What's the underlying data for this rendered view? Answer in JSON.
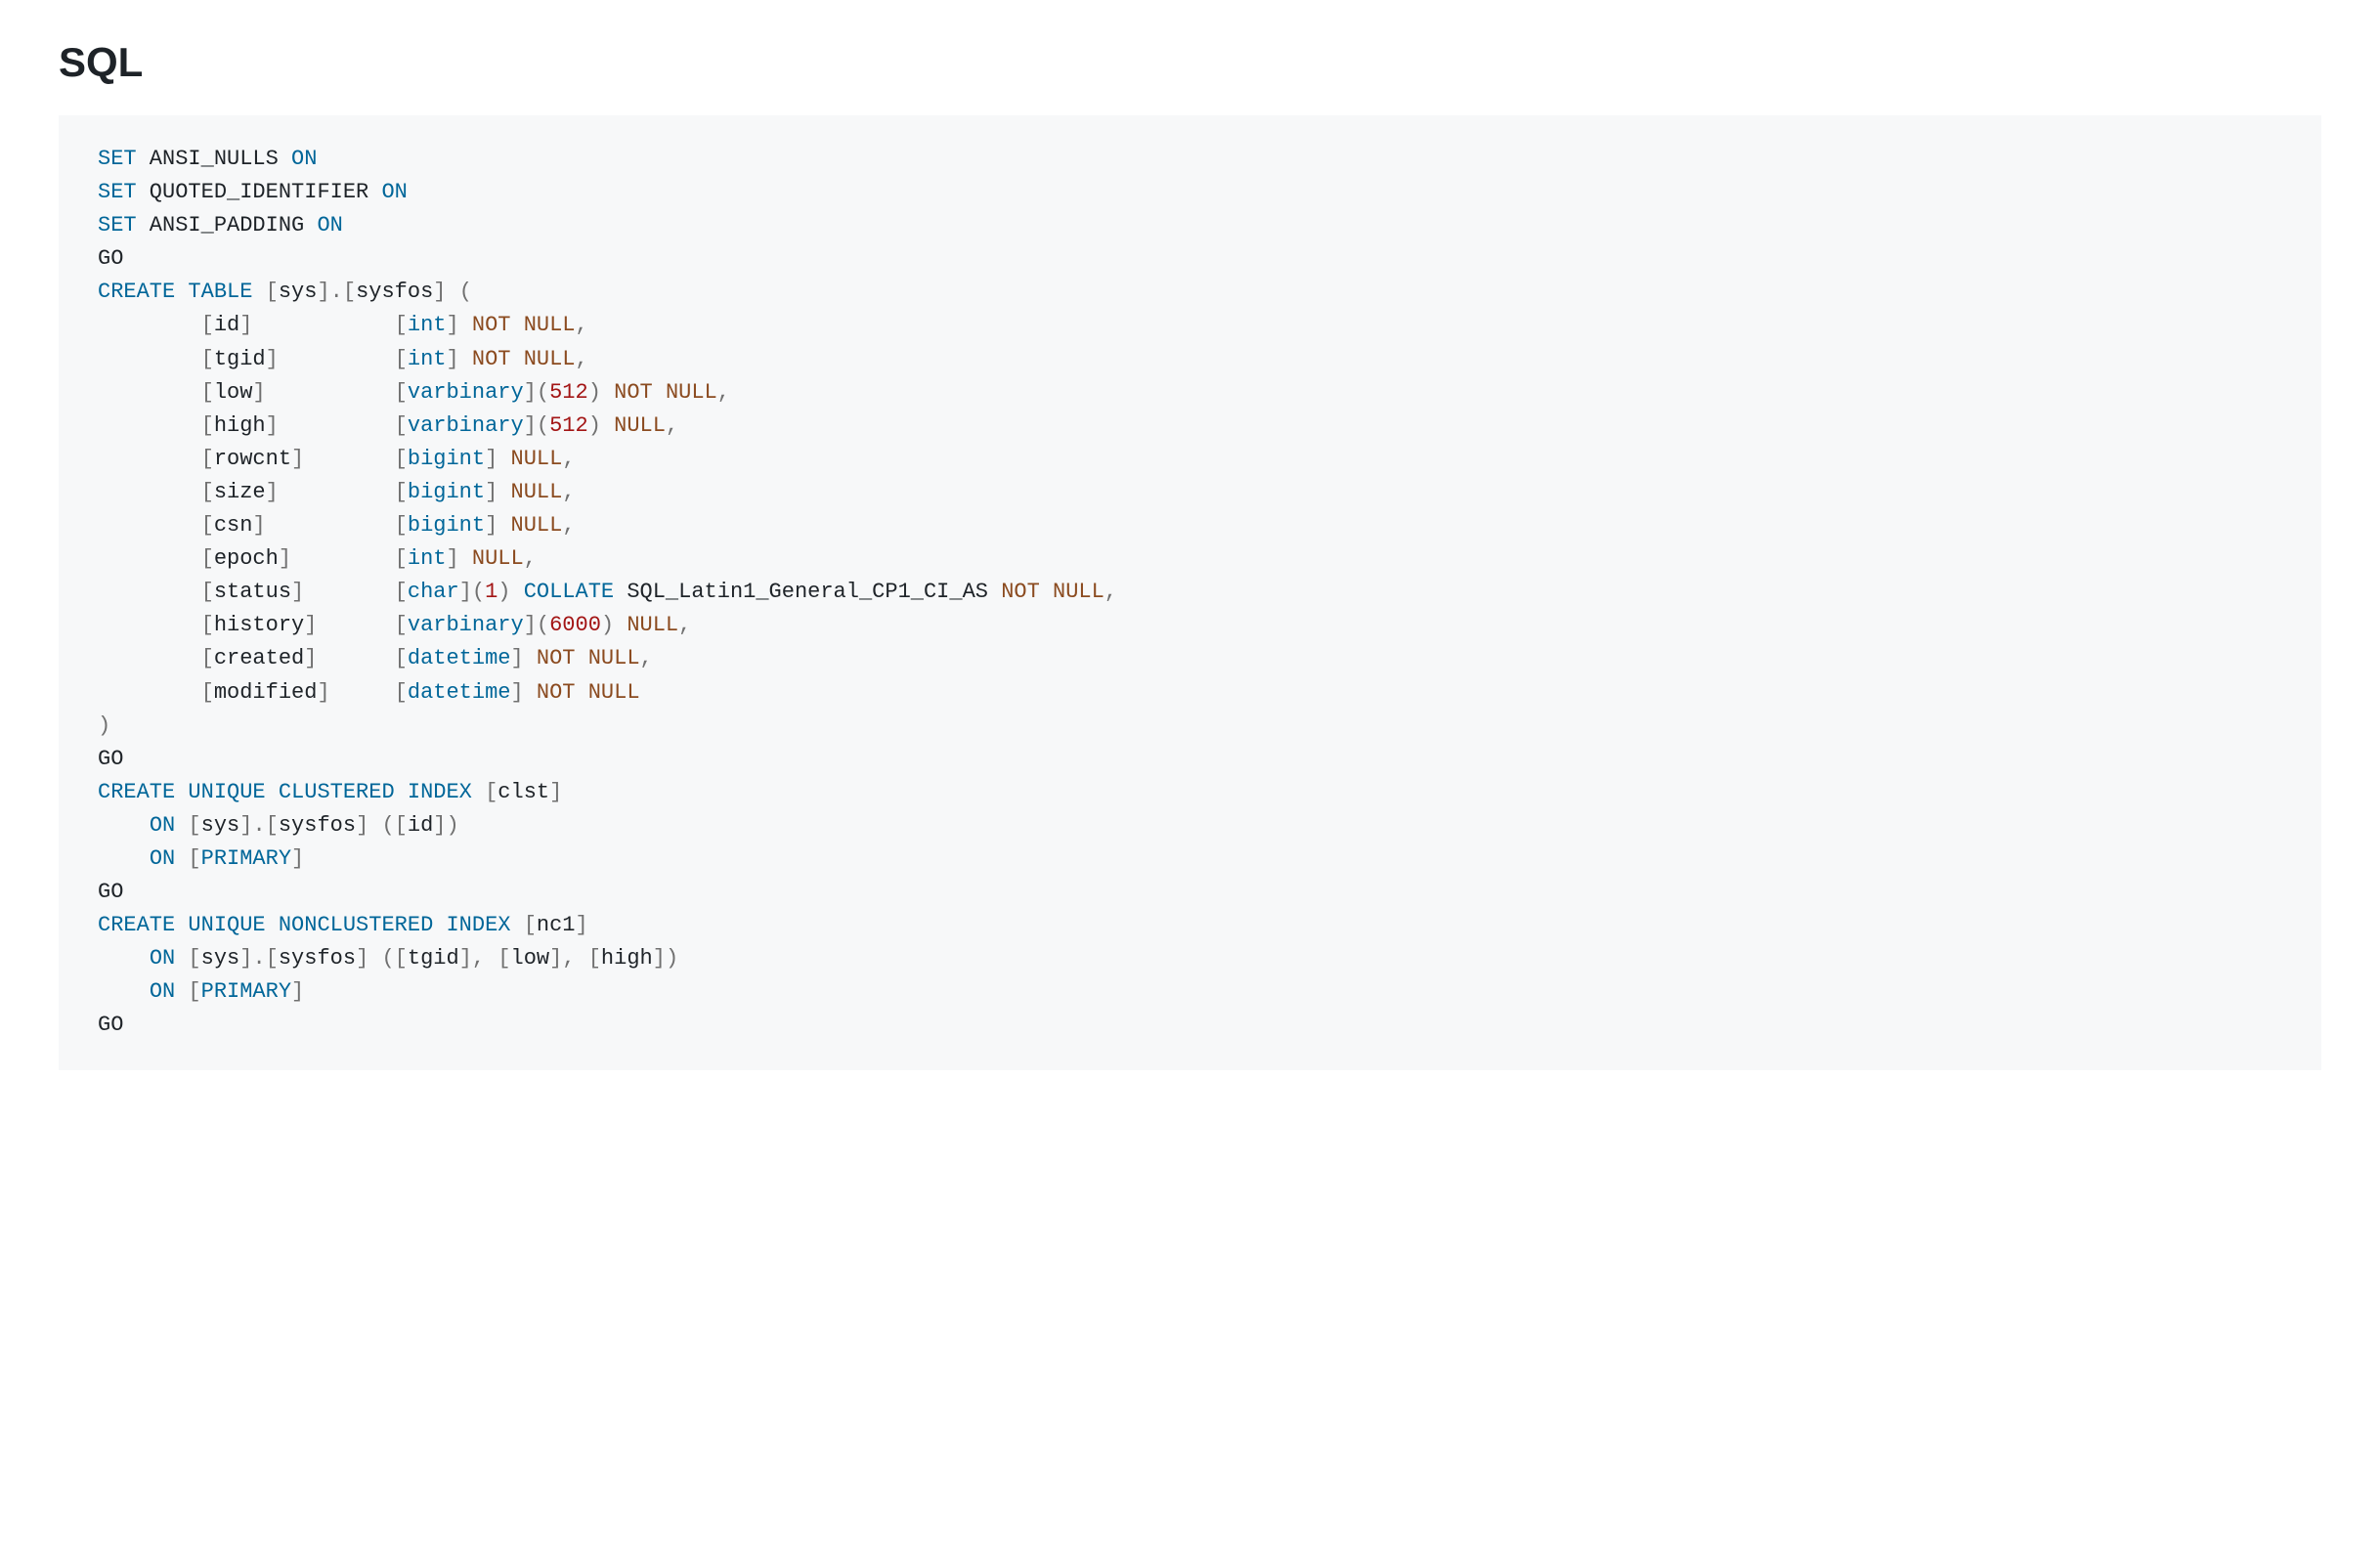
{
  "title": "SQL",
  "colors": {
    "keyword": "#006699",
    "type": "#006699",
    "number": "#a31515",
    "notnull": "#8b4b20",
    "null": "#8b4b20",
    "bracket": "#707070",
    "identifier": "#1e2328",
    "punctuation": "#707070",
    "background": "#f7f8f9",
    "page_bg": "#ffffff",
    "heading": "#1e2328"
  },
  "typography": {
    "heading_fontsize": 42,
    "heading_weight": 700,
    "code_fontsize": 22,
    "code_lineheight": 1.55,
    "code_fontfamily": "monospace"
  },
  "code": {
    "type": "sql-ddl",
    "lines": [
      [
        {
          "t": "SET",
          "c": "kw"
        },
        {
          "t": " ANSI_NULLS ",
          "c": "ident"
        },
        {
          "t": "ON",
          "c": "kw"
        }
      ],
      [
        {
          "t": "SET",
          "c": "kw"
        },
        {
          "t": " QUOTED_IDENTIFIER ",
          "c": "ident"
        },
        {
          "t": "ON",
          "c": "kw"
        }
      ],
      [
        {
          "t": "SET",
          "c": "kw"
        },
        {
          "t": " ANSI_PADDING ",
          "c": "ident"
        },
        {
          "t": "ON",
          "c": "kw"
        }
      ],
      [
        {
          "t": "GO",
          "c": "ident"
        }
      ],
      [
        {
          "t": "CREATE",
          "c": "kw"
        },
        {
          "t": " ",
          "c": "ident"
        },
        {
          "t": "TABLE",
          "c": "kw"
        },
        {
          "t": " ",
          "c": "ident"
        },
        {
          "t": "[",
          "c": "br"
        },
        {
          "t": "sys",
          "c": "ident"
        },
        {
          "t": "]",
          "c": "br"
        },
        {
          "t": ".",
          "c": "pn"
        },
        {
          "t": "[",
          "c": "br"
        },
        {
          "t": "sysfos",
          "c": "ident"
        },
        {
          "t": "]",
          "c": "br"
        },
        {
          "t": " ",
          "c": "ident"
        },
        {
          "t": "(",
          "c": "pn"
        }
      ],
      [
        {
          "t": "        ",
          "c": "ident"
        },
        {
          "t": "[",
          "c": "br"
        },
        {
          "t": "id",
          "c": "ident"
        },
        {
          "t": "]",
          "c": "br"
        },
        {
          "t": "           ",
          "c": "ident"
        },
        {
          "t": "[",
          "c": "br"
        },
        {
          "t": "int",
          "c": "typ"
        },
        {
          "t": "]",
          "c": "br"
        },
        {
          "t": " ",
          "c": "ident"
        },
        {
          "t": "NOT",
          "c": "nn"
        },
        {
          "t": " ",
          "c": "ident"
        },
        {
          "t": "NULL",
          "c": "nn"
        },
        {
          "t": ",",
          "c": "pn"
        }
      ],
      [
        {
          "t": "        ",
          "c": "ident"
        },
        {
          "t": "[",
          "c": "br"
        },
        {
          "t": "tgid",
          "c": "ident"
        },
        {
          "t": "]",
          "c": "br"
        },
        {
          "t": "         ",
          "c": "ident"
        },
        {
          "t": "[",
          "c": "br"
        },
        {
          "t": "int",
          "c": "typ"
        },
        {
          "t": "]",
          "c": "br"
        },
        {
          "t": " ",
          "c": "ident"
        },
        {
          "t": "NOT",
          "c": "nn"
        },
        {
          "t": " ",
          "c": "ident"
        },
        {
          "t": "NULL",
          "c": "nn"
        },
        {
          "t": ",",
          "c": "pn"
        }
      ],
      [
        {
          "t": "        ",
          "c": "ident"
        },
        {
          "t": "[",
          "c": "br"
        },
        {
          "t": "low",
          "c": "ident"
        },
        {
          "t": "]",
          "c": "br"
        },
        {
          "t": "          ",
          "c": "ident"
        },
        {
          "t": "[",
          "c": "br"
        },
        {
          "t": "varbinary",
          "c": "typ"
        },
        {
          "t": "]",
          "c": "br"
        },
        {
          "t": "(",
          "c": "pn"
        },
        {
          "t": "512",
          "c": "num"
        },
        {
          "t": ")",
          "c": "pn"
        },
        {
          "t": " ",
          "c": "ident"
        },
        {
          "t": "NOT",
          "c": "nn"
        },
        {
          "t": " ",
          "c": "ident"
        },
        {
          "t": "NULL",
          "c": "nn"
        },
        {
          "t": ",",
          "c": "pn"
        }
      ],
      [
        {
          "t": "        ",
          "c": "ident"
        },
        {
          "t": "[",
          "c": "br"
        },
        {
          "t": "high",
          "c": "ident"
        },
        {
          "t": "]",
          "c": "br"
        },
        {
          "t": "         ",
          "c": "ident"
        },
        {
          "t": "[",
          "c": "br"
        },
        {
          "t": "varbinary",
          "c": "typ"
        },
        {
          "t": "]",
          "c": "br"
        },
        {
          "t": "(",
          "c": "pn"
        },
        {
          "t": "512",
          "c": "num"
        },
        {
          "t": ")",
          "c": "pn"
        },
        {
          "t": " ",
          "c": "ident"
        },
        {
          "t": "NULL",
          "c": "nl"
        },
        {
          "t": ",",
          "c": "pn"
        }
      ],
      [
        {
          "t": "        ",
          "c": "ident"
        },
        {
          "t": "[",
          "c": "br"
        },
        {
          "t": "rowcnt",
          "c": "ident"
        },
        {
          "t": "]",
          "c": "br"
        },
        {
          "t": "       ",
          "c": "ident"
        },
        {
          "t": "[",
          "c": "br"
        },
        {
          "t": "bigint",
          "c": "typ"
        },
        {
          "t": "]",
          "c": "br"
        },
        {
          "t": " ",
          "c": "ident"
        },
        {
          "t": "NULL",
          "c": "nl"
        },
        {
          "t": ",",
          "c": "pn"
        }
      ],
      [
        {
          "t": "        ",
          "c": "ident"
        },
        {
          "t": "[",
          "c": "br"
        },
        {
          "t": "size",
          "c": "ident"
        },
        {
          "t": "]",
          "c": "br"
        },
        {
          "t": "         ",
          "c": "ident"
        },
        {
          "t": "[",
          "c": "br"
        },
        {
          "t": "bigint",
          "c": "typ"
        },
        {
          "t": "]",
          "c": "br"
        },
        {
          "t": " ",
          "c": "ident"
        },
        {
          "t": "NULL",
          "c": "nl"
        },
        {
          "t": ",",
          "c": "pn"
        }
      ],
      [
        {
          "t": "        ",
          "c": "ident"
        },
        {
          "t": "[",
          "c": "br"
        },
        {
          "t": "csn",
          "c": "ident"
        },
        {
          "t": "]",
          "c": "br"
        },
        {
          "t": "          ",
          "c": "ident"
        },
        {
          "t": "[",
          "c": "br"
        },
        {
          "t": "bigint",
          "c": "typ"
        },
        {
          "t": "]",
          "c": "br"
        },
        {
          "t": " ",
          "c": "ident"
        },
        {
          "t": "NULL",
          "c": "nl"
        },
        {
          "t": ",",
          "c": "pn"
        }
      ],
      [
        {
          "t": "        ",
          "c": "ident"
        },
        {
          "t": "[",
          "c": "br"
        },
        {
          "t": "epoch",
          "c": "ident"
        },
        {
          "t": "]",
          "c": "br"
        },
        {
          "t": "        ",
          "c": "ident"
        },
        {
          "t": "[",
          "c": "br"
        },
        {
          "t": "int",
          "c": "typ"
        },
        {
          "t": "]",
          "c": "br"
        },
        {
          "t": " ",
          "c": "ident"
        },
        {
          "t": "NULL",
          "c": "nl"
        },
        {
          "t": ",",
          "c": "pn"
        }
      ],
      [
        {
          "t": "        ",
          "c": "ident"
        },
        {
          "t": "[",
          "c": "br"
        },
        {
          "t": "status",
          "c": "ident"
        },
        {
          "t": "]",
          "c": "br"
        },
        {
          "t": "       ",
          "c": "ident"
        },
        {
          "t": "[",
          "c": "br"
        },
        {
          "t": "char",
          "c": "typ"
        },
        {
          "t": "]",
          "c": "br"
        },
        {
          "t": "(",
          "c": "pn"
        },
        {
          "t": "1",
          "c": "num"
        },
        {
          "t": ")",
          "c": "pn"
        },
        {
          "t": " ",
          "c": "ident"
        },
        {
          "t": "COLLATE",
          "c": "kw"
        },
        {
          "t": " SQL_Latin1_General_CP1_CI_AS ",
          "c": "ident"
        },
        {
          "t": "NOT",
          "c": "nn"
        },
        {
          "t": " ",
          "c": "ident"
        },
        {
          "t": "NULL",
          "c": "nn"
        },
        {
          "t": ",",
          "c": "pn"
        }
      ],
      [
        {
          "t": "        ",
          "c": "ident"
        },
        {
          "t": "[",
          "c": "br"
        },
        {
          "t": "history",
          "c": "ident"
        },
        {
          "t": "]",
          "c": "br"
        },
        {
          "t": "      ",
          "c": "ident"
        },
        {
          "t": "[",
          "c": "br"
        },
        {
          "t": "varbinary",
          "c": "typ"
        },
        {
          "t": "]",
          "c": "br"
        },
        {
          "t": "(",
          "c": "pn"
        },
        {
          "t": "6000",
          "c": "num"
        },
        {
          "t": ")",
          "c": "pn"
        },
        {
          "t": " ",
          "c": "ident"
        },
        {
          "t": "NULL",
          "c": "nl"
        },
        {
          "t": ",",
          "c": "pn"
        }
      ],
      [
        {
          "t": "        ",
          "c": "ident"
        },
        {
          "t": "[",
          "c": "br"
        },
        {
          "t": "created",
          "c": "ident"
        },
        {
          "t": "]",
          "c": "br"
        },
        {
          "t": "      ",
          "c": "ident"
        },
        {
          "t": "[",
          "c": "br"
        },
        {
          "t": "datetime",
          "c": "typ"
        },
        {
          "t": "]",
          "c": "br"
        },
        {
          "t": " ",
          "c": "ident"
        },
        {
          "t": "NOT",
          "c": "nn"
        },
        {
          "t": " ",
          "c": "ident"
        },
        {
          "t": "NULL",
          "c": "nn"
        },
        {
          "t": ",",
          "c": "pn"
        }
      ],
      [
        {
          "t": "        ",
          "c": "ident"
        },
        {
          "t": "[",
          "c": "br"
        },
        {
          "t": "modified",
          "c": "ident"
        },
        {
          "t": "]",
          "c": "br"
        },
        {
          "t": "     ",
          "c": "ident"
        },
        {
          "t": "[",
          "c": "br"
        },
        {
          "t": "datetime",
          "c": "typ"
        },
        {
          "t": "]",
          "c": "br"
        },
        {
          "t": " ",
          "c": "ident"
        },
        {
          "t": "NOT",
          "c": "nn"
        },
        {
          "t": " ",
          "c": "ident"
        },
        {
          "t": "NULL",
          "c": "nn"
        }
      ],
      [
        {
          "t": ")",
          "c": "pn"
        }
      ],
      [
        {
          "t": "GO",
          "c": "ident"
        }
      ],
      [
        {
          "t": "CREATE",
          "c": "kw"
        },
        {
          "t": " ",
          "c": "ident"
        },
        {
          "t": "UNIQUE",
          "c": "kw"
        },
        {
          "t": " ",
          "c": "ident"
        },
        {
          "t": "CLUSTERED",
          "c": "kw"
        },
        {
          "t": " ",
          "c": "ident"
        },
        {
          "t": "INDEX",
          "c": "kw"
        },
        {
          "t": " ",
          "c": "ident"
        },
        {
          "t": "[",
          "c": "br"
        },
        {
          "t": "clst",
          "c": "ident"
        },
        {
          "t": "]",
          "c": "br"
        }
      ],
      [
        {
          "t": "    ",
          "c": "ident"
        },
        {
          "t": "ON",
          "c": "kw"
        },
        {
          "t": " ",
          "c": "ident"
        },
        {
          "t": "[",
          "c": "br"
        },
        {
          "t": "sys",
          "c": "ident"
        },
        {
          "t": "]",
          "c": "br"
        },
        {
          "t": ".",
          "c": "pn"
        },
        {
          "t": "[",
          "c": "br"
        },
        {
          "t": "sysfos",
          "c": "ident"
        },
        {
          "t": "]",
          "c": "br"
        },
        {
          "t": " ",
          "c": "ident"
        },
        {
          "t": "(",
          "c": "pn"
        },
        {
          "t": "[",
          "c": "br"
        },
        {
          "t": "id",
          "c": "ident"
        },
        {
          "t": "]",
          "c": "br"
        },
        {
          "t": ")",
          "c": "pn"
        }
      ],
      [
        {
          "t": "    ",
          "c": "ident"
        },
        {
          "t": "ON",
          "c": "kw"
        },
        {
          "t": " ",
          "c": "ident"
        },
        {
          "t": "[",
          "c": "br"
        },
        {
          "t": "PRIMARY",
          "c": "kw"
        },
        {
          "t": "]",
          "c": "br"
        }
      ],
      [
        {
          "t": "GO",
          "c": "ident"
        }
      ],
      [
        {
          "t": "CREATE",
          "c": "kw"
        },
        {
          "t": " ",
          "c": "ident"
        },
        {
          "t": "UNIQUE",
          "c": "kw"
        },
        {
          "t": " ",
          "c": "ident"
        },
        {
          "t": "NONCLUSTERED",
          "c": "kw"
        },
        {
          "t": " ",
          "c": "ident"
        },
        {
          "t": "INDEX",
          "c": "kw"
        },
        {
          "t": " ",
          "c": "ident"
        },
        {
          "t": "[",
          "c": "br"
        },
        {
          "t": "nc1",
          "c": "ident"
        },
        {
          "t": "]",
          "c": "br"
        }
      ],
      [
        {
          "t": "    ",
          "c": "ident"
        },
        {
          "t": "ON",
          "c": "kw"
        },
        {
          "t": " ",
          "c": "ident"
        },
        {
          "t": "[",
          "c": "br"
        },
        {
          "t": "sys",
          "c": "ident"
        },
        {
          "t": "]",
          "c": "br"
        },
        {
          "t": ".",
          "c": "pn"
        },
        {
          "t": "[",
          "c": "br"
        },
        {
          "t": "sysfos",
          "c": "ident"
        },
        {
          "t": "]",
          "c": "br"
        },
        {
          "t": " ",
          "c": "ident"
        },
        {
          "t": "(",
          "c": "pn"
        },
        {
          "t": "[",
          "c": "br"
        },
        {
          "t": "tgid",
          "c": "ident"
        },
        {
          "t": "]",
          "c": "br"
        },
        {
          "t": ",",
          "c": "pn"
        },
        {
          "t": " ",
          "c": "ident"
        },
        {
          "t": "[",
          "c": "br"
        },
        {
          "t": "low",
          "c": "ident"
        },
        {
          "t": "]",
          "c": "br"
        },
        {
          "t": ",",
          "c": "pn"
        },
        {
          "t": " ",
          "c": "ident"
        },
        {
          "t": "[",
          "c": "br"
        },
        {
          "t": "high",
          "c": "ident"
        },
        {
          "t": "]",
          "c": "br"
        },
        {
          "t": ")",
          "c": "pn"
        }
      ],
      [
        {
          "t": "    ",
          "c": "ident"
        },
        {
          "t": "ON",
          "c": "kw"
        },
        {
          "t": " ",
          "c": "ident"
        },
        {
          "t": "[",
          "c": "br"
        },
        {
          "t": "PRIMARY",
          "c": "kw"
        },
        {
          "t": "]",
          "c": "br"
        }
      ],
      [
        {
          "t": "GO",
          "c": "ident"
        }
      ]
    ]
  }
}
